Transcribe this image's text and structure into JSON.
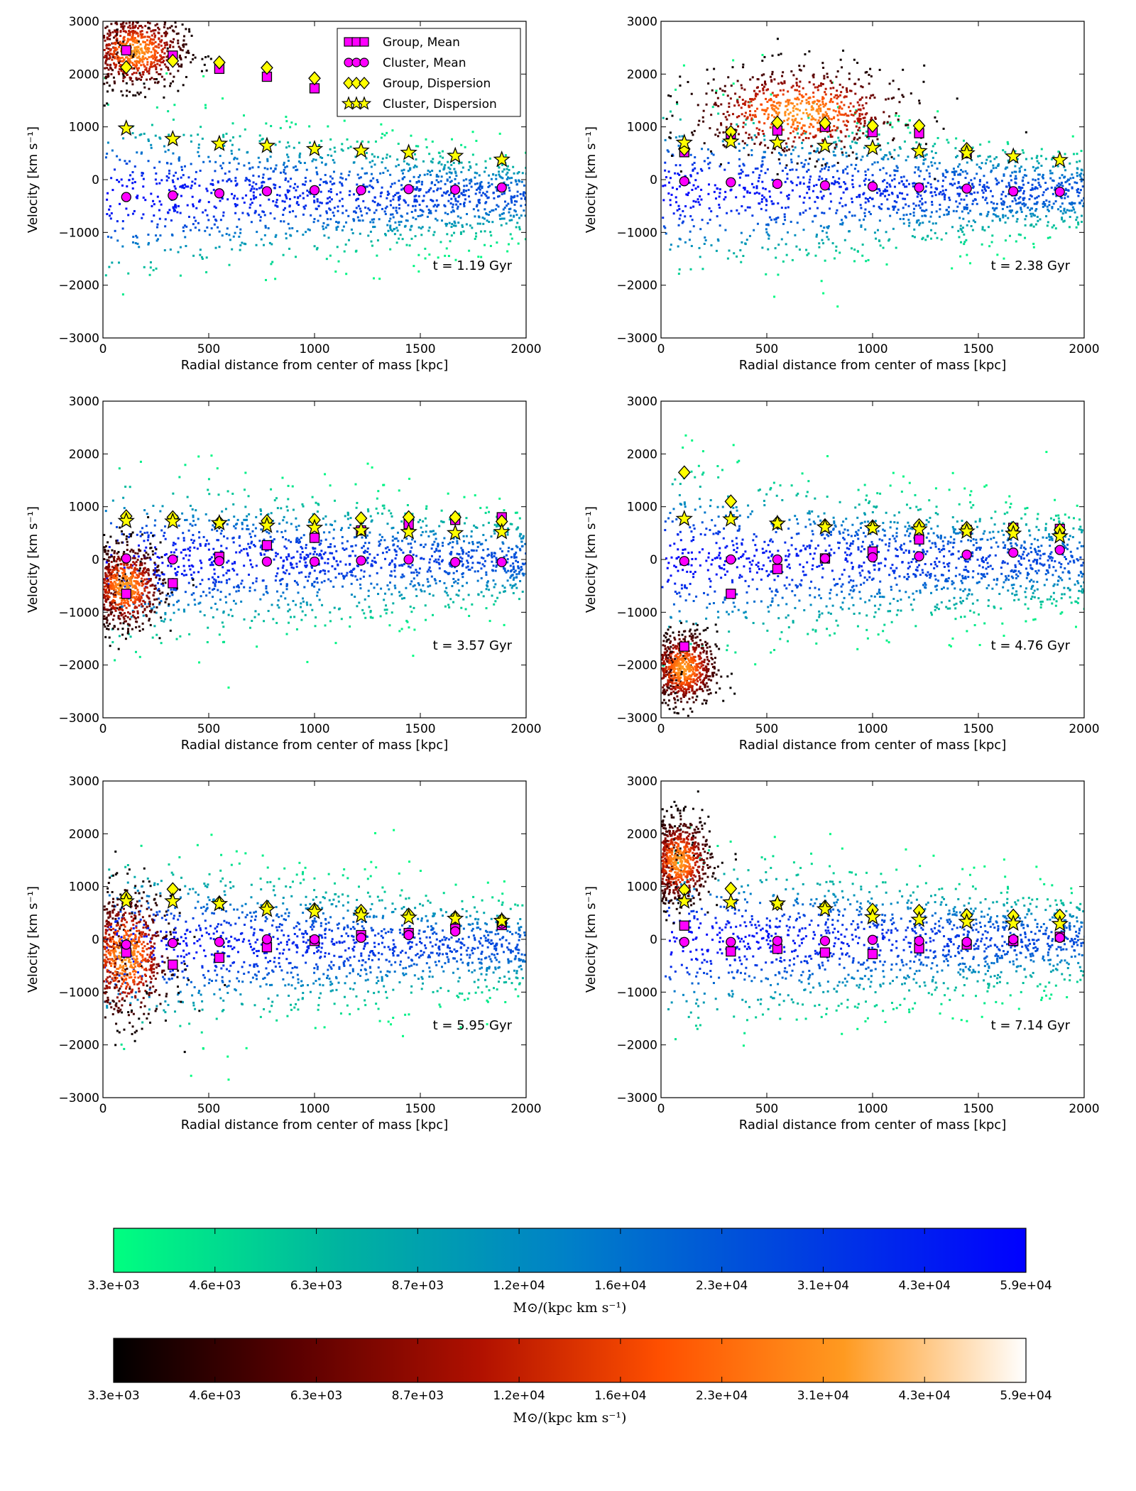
{
  "chart_data": {
    "type": "scatter",
    "panels": [
      {
        "time_label": "t = 1.19 Gyr",
        "xlabel": "Radial distance from center of mass [kpc]",
        "ylabel": "Velocity [km s⁻¹]",
        "xlim": [
          0,
          2000
        ],
        "ylim": [
          -3000,
          3000
        ],
        "x_ticks": [
          "0",
          "500",
          "1000",
          "1500",
          "2000"
        ],
        "y_ticks": [
          "-3000",
          "-2000",
          "-1000",
          "0",
          "1000",
          "2000",
          "3000"
        ],
        "x": [
          110,
          330,
          550,
          775,
          1000,
          1220,
          1445,
          1665,
          1885
        ],
        "group_mean": [
          2450,
          2350,
          2100,
          1950,
          1730,
          null,
          null,
          null,
          null
        ],
        "cluster_mean": [
          -330,
          -300,
          -260,
          -220,
          -200,
          -200,
          -180,
          -190,
          -150
        ],
        "group_dispersion": [
          2130,
          2250,
          2220,
          2120,
          1920,
          null,
          null,
          null,
          null
        ],
        "cluster_dispersion": [
          970,
          770,
          680,
          640,
          580,
          550,
          510,
          450,
          380
        ],
        "cluster_cloud": {
          "center": [
            0,
            -300
          ],
          "spread_v_at_0": 1500,
          "spread_v_at_2000": 700
        },
        "group_cloud": {
          "center_r": 150,
          "center_v": 2450,
          "spread_r": 240,
          "spread_v": 350
        }
      },
      {
        "time_label": "t = 2.38 Gyr",
        "xlabel": "Radial distance from center of mass [kpc]",
        "ylabel": "Velocity [km s⁻¹]",
        "xlim": [
          0,
          2000
        ],
        "ylim": [
          -3000,
          3000
        ],
        "x_ticks": [
          "0",
          "500",
          "1000",
          "1500",
          "2000"
        ],
        "y_ticks": [
          "-3000",
          "-2000",
          "-1000",
          "0",
          "1000",
          "2000",
          "3000"
        ],
        "x": [
          110,
          330,
          550,
          775,
          1000,
          1220,
          1445,
          1665,
          1885
        ],
        "group_mean": [
          520,
          870,
          930,
          1000,
          900,
          880,
          500,
          null,
          null
        ],
        "cluster_mean": [
          -30,
          -50,
          -80,
          -110,
          -130,
          -150,
          -170,
          -220,
          -230
        ],
        "group_dispersion": [
          580,
          900,
          1080,
          1070,
          1020,
          1020,
          580,
          null,
          null
        ],
        "cluster_dispersion": [
          700,
          720,
          700,
          640,
          600,
          540,
          500,
          440,
          370
        ],
        "cluster_cloud": {
          "center": [
            0,
            -200
          ],
          "spread_v_at_0": 1500,
          "spread_v_at_2000": 700
        },
        "group_cloud": {
          "center_r": 650,
          "center_v": 1300,
          "spread_r": 500,
          "spread_v": 420
        }
      },
      {
        "time_label": "t = 3.57 Gyr",
        "xlabel": "Radial distance from center of mass [kpc]",
        "ylabel": "Velocity [km s⁻¹]",
        "xlim": [
          0,
          2000
        ],
        "ylim": [
          -3000,
          3000
        ],
        "x_ticks": [
          "0",
          "500",
          "1000",
          "1500",
          "2000"
        ],
        "y_ticks": [
          "-3000",
          "-2000",
          "-1000",
          "0",
          "1000",
          "2000",
          "3000"
        ],
        "x": [
          110,
          330,
          550,
          775,
          1000,
          1220,
          1445,
          1665,
          1885
        ],
        "group_mean": [
          -650,
          -450,
          50,
          270,
          410,
          550,
          670,
          750,
          800
        ],
        "cluster_mean": [
          20,
          0,
          -30,
          -40,
          -40,
          -20,
          0,
          -50,
          -50
        ],
        "group_dispersion": [
          820,
          800,
          700,
          730,
          750,
          780,
          800,
          800,
          720
        ],
        "cluster_dispersion": [
          730,
          720,
          690,
          640,
          600,
          550,
          520,
          500,
          520
        ],
        "cluster_cloud": {
          "center": [
            0,
            0
          ],
          "spread_v_at_0": 1500,
          "spread_v_at_2000": 800
        },
        "group_cloud": {
          "center_r": 100,
          "center_v": -500,
          "spread_r": 180,
          "spread_v": 400
        }
      },
      {
        "time_label": "t = 4.76 Gyr",
        "xlabel": "Radial distance from center of mass [kpc]",
        "ylabel": "Velocity [km s⁻¹]",
        "xlim": [
          0,
          2000
        ],
        "ylim": [
          -3000,
          3000
        ],
        "x_ticks": [
          "0",
          "500",
          "1000",
          "1500",
          "2000"
        ],
        "y_ticks": [
          "-3000",
          "-2000",
          "-1000",
          "0",
          "1000",
          "2000",
          "3000"
        ],
        "x": [
          110,
          330,
          550,
          775,
          1000,
          1220,
          1445,
          1665,
          1885
        ],
        "group_mean": [
          -1650,
          -650,
          -180,
          20,
          150,
          380,
          560,
          600,
          580
        ],
        "cluster_mean": [
          -30,
          0,
          0,
          20,
          40,
          60,
          90,
          130,
          180
        ],
        "group_dispersion": [
          1650,
          1100,
          700,
          650,
          630,
          650,
          600,
          600,
          560
        ],
        "cluster_dispersion": [
          770,
          760,
          680,
          610,
          590,
          570,
          530,
          490,
          440
        ],
        "cluster_cloud": {
          "center": [
            0,
            0
          ],
          "spread_v_at_0": 1600,
          "spread_v_at_2000": 800
        },
        "group_cloud": {
          "center_r": 100,
          "center_v": -2050,
          "spread_r": 160,
          "spread_v": 350
        }
      },
      {
        "time_label": "t = 5.95 Gyr",
        "xlabel": "Radial distance from center of mass [kpc]",
        "ylabel": "Velocity [km s⁻¹]",
        "xlim": [
          0,
          2000
        ],
        "ylim": [
          -3000,
          3000
        ],
        "x_ticks": [
          "0",
          "500",
          "1000",
          "1500",
          "2000"
        ],
        "y_ticks": [
          "-3000",
          "-2000",
          "-1000",
          "0",
          "1000",
          "2000",
          "3000"
        ],
        "x": [
          110,
          330,
          550,
          775,
          1000,
          1220,
          1445,
          1665,
          1885
        ],
        "group_mean": [
          -250,
          -480,
          -350,
          -150,
          -30,
          80,
          120,
          200,
          270
        ],
        "cluster_mean": [
          -100,
          -70,
          -50,
          0,
          0,
          30,
          80,
          150,
          300
        ],
        "group_dispersion": [
          800,
          950,
          700,
          620,
          570,
          540,
          470,
          420,
          370
        ],
        "cluster_dispersion": [
          720,
          720,
          670,
          560,
          520,
          450,
          410,
          390,
          350
        ],
        "cluster_cloud": {
          "center": [
            0,
            -100
          ],
          "spread_v_at_0": 1600,
          "spread_v_at_2000": 800
        },
        "group_cloud": {
          "center_r": 100,
          "center_v": -300,
          "spread_r": 220,
          "spread_v": 600
        }
      },
      {
        "time_label": "t = 7.14 Gyr",
        "xlabel": "Radial distance from center of mass [kpc]",
        "ylabel": "Velocity [km s⁻¹]",
        "xlim": [
          0,
          2000
        ],
        "ylim": [
          -3000,
          3000
        ],
        "x_ticks": [
          "0",
          "500",
          "1000",
          "1500",
          "2000"
        ],
        "y_ticks": [
          "-3000",
          "-2000",
          "-1000",
          "0",
          "1000",
          "2000",
          "3000"
        ],
        "x": [
          110,
          330,
          550,
          775,
          1000,
          1220,
          1445,
          1665,
          1885
        ],
        "group_mean": [
          260,
          -230,
          -180,
          -250,
          -280,
          -170,
          -100,
          -30,
          50
        ],
        "cluster_mean": [
          -50,
          -50,
          -30,
          -30,
          -10,
          -30,
          -50,
          0,
          30
        ],
        "group_dispersion": [
          940,
          960,
          670,
          620,
          560,
          540,
          460,
          450,
          450
        ],
        "cluster_dispersion": [
          720,
          700,
          680,
          570,
          420,
          370,
          330,
          300,
          290
        ],
        "cluster_cloud": {
          "center": [
            0,
            0
          ],
          "spread_v_at_0": 1600,
          "spread_v_at_2000": 800
        },
        "group_cloud": {
          "center_r": 80,
          "center_v": 1500,
          "spread_r": 150,
          "spread_v": 400
        }
      }
    ],
    "legend": {
      "placement": "top-right",
      "entries": [
        "Group, Mean",
        "Cluster, Mean",
        "Group, Dispersion",
        "Cluster, Dispersion"
      ]
    },
    "colorbars": [
      {
        "name": "cluster",
        "gradient": [
          "#00ff80",
          "#00b3a0",
          "#0080c8",
          "#0040e0",
          "#0000ff"
        ],
        "tick_labels": [
          "3.3e+03",
          "4.6e+03",
          "6.3e+03",
          "8.7e+03",
          "1.2e+04",
          "1.6e+04",
          "2.3e+04",
          "3.1e+04",
          "4.3e+04",
          "5.9e+04"
        ],
        "label": "M⊙/(kpc km s⁻¹)"
      },
      {
        "name": "group",
        "gradient": [
          "#000000",
          "#5a0000",
          "#b01000",
          "#ff5000",
          "#ff9a20",
          "#ffffff"
        ],
        "tick_labels": [
          "3.3e+03",
          "4.6e+03",
          "6.3e+03",
          "8.7e+03",
          "1.2e+04",
          "1.6e+04",
          "2.3e+04",
          "3.1e+04",
          "4.3e+04",
          "5.9e+04"
        ],
        "label": "M⊙/(kpc km s⁻¹)"
      }
    ],
    "colors": {
      "mean_marker": "#ff00ff",
      "dispersion_marker": "#ffff00",
      "marker_edge": "#000000"
    }
  }
}
